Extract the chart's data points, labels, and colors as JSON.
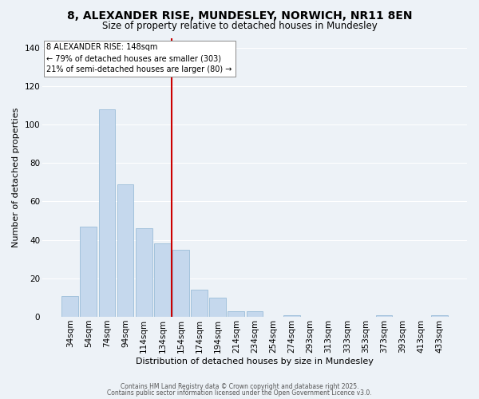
{
  "title": "8, ALEXANDER RISE, MUNDESLEY, NORWICH, NR11 8EN",
  "subtitle": "Size of property relative to detached houses in Mundesley",
  "xlabel": "Distribution of detached houses by size in Mundesley",
  "ylabel": "Number of detached properties",
  "bar_values": [
    11,
    47,
    108,
    69,
    46,
    38,
    35,
    14,
    10,
    3,
    3,
    0,
    1,
    0,
    0,
    0,
    0,
    1,
    0,
    0,
    1
  ],
  "bar_labels": [
    "34sqm",
    "54sqm",
    "74sqm",
    "94sqm",
    "114sqm",
    "134sqm",
    "154sqm",
    "174sqm",
    "194sqm",
    "214sqm",
    "234sqm",
    "254sqm",
    "274sqm",
    "293sqm",
    "313sqm",
    "333sqm",
    "353sqm",
    "373sqm",
    "393sqm",
    "413sqm",
    "433sqm"
  ],
  "bar_color": "#c5d8ed",
  "bar_edge_color": "#9bbdd8",
  "vline_color": "#cc0000",
  "annotation_title": "8 ALEXANDER RISE: 148sqm",
  "annotation_line1": "← 79% of detached houses are smaller (303)",
  "annotation_line2": "21% of semi-detached houses are larger (80) →",
  "annotation_box_color": "#ffffff",
  "annotation_box_edge": "#888888",
  "ylim": [
    0,
    145
  ],
  "yticks": [
    0,
    20,
    40,
    60,
    80,
    100,
    120,
    140
  ],
  "footer1": "Contains HM Land Registry data © Crown copyright and database right 2025.",
  "footer2": "Contains public sector information licensed under the Open Government Licence v3.0.",
  "background_color": "#edf2f7",
  "grid_color": "#ffffff",
  "title_fontsize": 10,
  "subtitle_fontsize": 8.5,
  "xlabel_fontsize": 8,
  "ylabel_fontsize": 8,
  "tick_fontsize": 7.5,
  "ann_fontsize": 7,
  "footer_fontsize": 5.5
}
